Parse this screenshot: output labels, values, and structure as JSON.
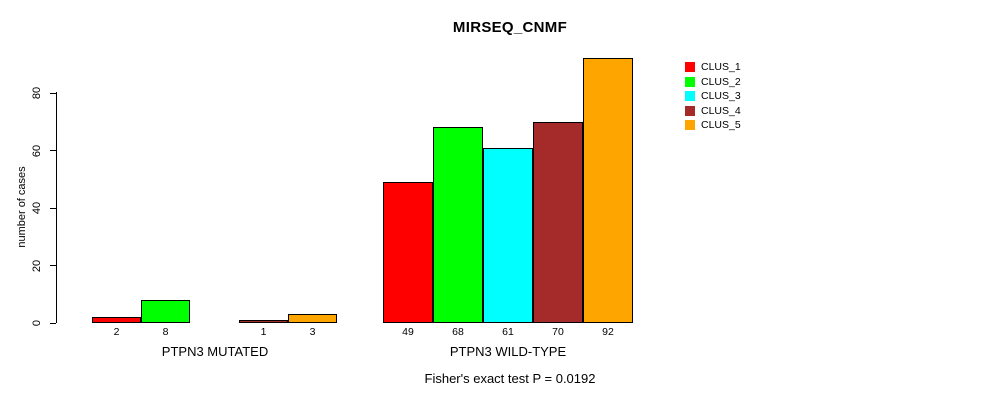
{
  "chart_data": {
    "type": "bar",
    "title": "MIRSEQ_CNMF",
    "ylabel": "number of cases",
    "xlabel": "",
    "annotation": "Fisher's exact test P = 0.0192",
    "categories": [
      "PTPN3 MUTATED",
      "PTPN3 WILD-TYPE"
    ],
    "series": [
      {
        "name": "CLUS_1",
        "color": "#FF0000",
        "values": [
          2,
          49
        ]
      },
      {
        "name": "CLUS_2",
        "color": "#00FF00",
        "values": [
          8,
          68
        ]
      },
      {
        "name": "CLUS_3",
        "color": "#00FFFF",
        "values": [
          0,
          61
        ]
      },
      {
        "name": "CLUS_4",
        "color": "#A52A2A",
        "values": [
          1,
          70
        ]
      },
      {
        "name": "CLUS_5",
        "color": "#FFA500",
        "values": [
          3,
          92
        ]
      }
    ],
    "bar_value_labels": [
      [
        "2",
        "8",
        "",
        "1",
        "3"
      ],
      [
        "49",
        "68",
        "61",
        "70",
        "92"
      ]
    ],
    "yticks": [
      0,
      20,
      40,
      60,
      80
    ],
    "ylim": [
      0,
      92
    ],
    "grid": false,
    "legend_position": "top-right",
    "legend": [
      "CLUS_1",
      "CLUS_2",
      "CLUS_3",
      "CLUS_4",
      "CLUS_5"
    ]
  }
}
